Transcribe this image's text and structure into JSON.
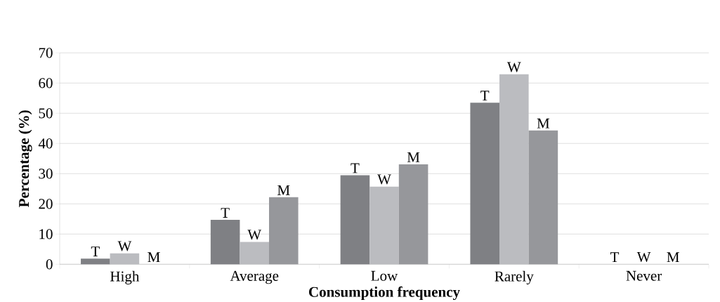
{
  "chart_data": {
    "type": "bar",
    "xlabel": "Consumption frequency",
    "ylabel": "Percentage (%)",
    "categories": [
      "High",
      "Average",
      "Low",
      "Rarely",
      "Never"
    ],
    "series": [
      {
        "name": "T",
        "color": "#7f8084",
        "values": [
          1.9,
          14.7,
          29.5,
          53.5,
          0
        ]
      },
      {
        "name": "W",
        "color": "#bbbcc0",
        "values": [
          3.6,
          7.4,
          25.7,
          62.9,
          0
        ]
      },
      {
        "name": "M",
        "color": "#96979b",
        "values": [
          0,
          22.2,
          33.1,
          44.3,
          0
        ]
      }
    ],
    "ylim": [
      0,
      70
    ],
    "yticks": [
      0,
      10,
      20,
      30,
      40,
      50,
      60,
      70
    ],
    "grid": "y"
  }
}
